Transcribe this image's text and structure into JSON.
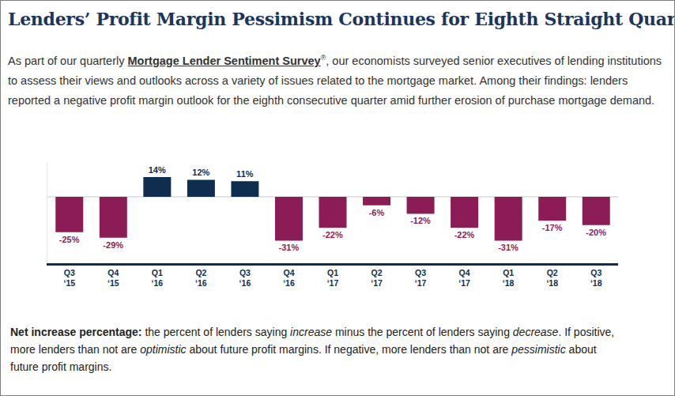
{
  "header": {
    "title": "Lenders’ Profit Margin Pessimism Continues for Eighth Straight Quarter",
    "intro": [
      {
        "text": "As part of our quarterly "
      },
      {
        "text": "Mortgage Lender Sentiment Survey",
        "style": "link"
      },
      {
        "text": "®",
        "style": "sup"
      },
      {
        "text": ", our economists surveyed senior executives of lending institutions to assess their views and outlooks across a variety of issues related to the mortgage market.  Among their findings: lenders reported a negative profit margin outlook for the eighth consecutive quarter amid further erosion of purchase mortgage demand."
      }
    ]
  },
  "chart_data": {
    "type": "bar",
    "categories": [
      "Q3 ‘15",
      "Q4 ‘15",
      "Q1 ‘16",
      "Q2 ‘16",
      "Q3 ‘16",
      "Q4 ‘16",
      "Q1 ‘17",
      "Q2 ‘17",
      "Q3 ‘17",
      "Q4 ‘17",
      "Q1 ‘18",
      "Q2 ‘18",
      "Q3 ‘18"
    ],
    "values": [
      -25,
      -29,
      14,
      12,
      11,
      -31,
      -22,
      -6,
      -12,
      -22,
      -31,
      -17,
      -20
    ],
    "value_labels": [
      "-25%",
      "-29%",
      "14%",
      "12%",
      "11%",
      "-31%",
      "-22%",
      "-6%",
      "-12%",
      "-22%",
      "-31%",
      "-17%",
      "-20%"
    ],
    "colors": [
      "#8c1c55",
      "#8c1c55",
      "#0f2e4f",
      "#0f2e4f",
      "#0f2e4f",
      "#8c1c55",
      "#8c1c55",
      "#8c1c55",
      "#8c1c55",
      "#8c1c55",
      "#8c1c55",
      "#8c1c55",
      "#8c1c55"
    ],
    "ylim": [
      -47,
      24
    ],
    "yticks": [
      0
    ],
    "grid": true,
    "data_labels": true,
    "tick_labels": "x"
  },
  "footnote": [
    {
      "text": "Net increase percentage:",
      "style": "bold"
    },
    {
      "text": " the percent of lenders saying "
    },
    {
      "text": "increase",
      "style": "italic"
    },
    {
      "text": " minus the percent of lenders saying "
    },
    {
      "text": "decrease",
      "style": "italic"
    },
    {
      "text": ". If positive, more lenders than not are "
    },
    {
      "text": "optimistic",
      "style": "italic"
    },
    {
      "text": " about future profit margins. If negative, more lenders than not are "
    },
    {
      "text": "pessimistic",
      "style": "italic"
    },
    {
      "text": " about future profit margins."
    }
  ]
}
